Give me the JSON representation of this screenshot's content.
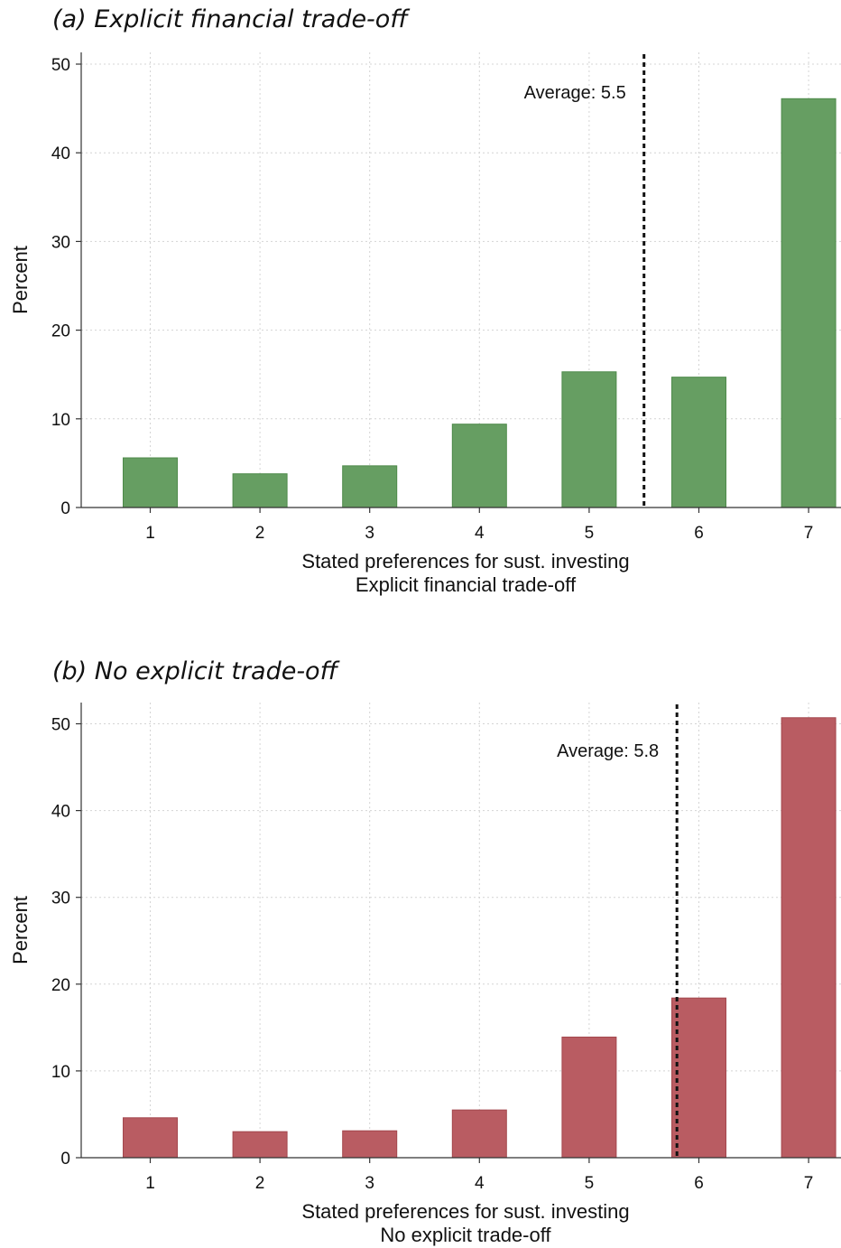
{
  "chart_data": [
    {
      "type": "bar",
      "title": "(a) Explicit financial trade-off",
      "categories": [
        "1",
        "2",
        "3",
        "4",
        "5",
        "6",
        "7"
      ],
      "values": [
        5.6,
        3.8,
        4.7,
        9.4,
        15.3,
        14.7,
        46.1
      ],
      "bar_color": "#669e62",
      "bar_edge": "#4e8a4a",
      "xlabel": "Stated preferences for sust. investing",
      "xlabel2": "Explicit financial trade-off",
      "ylabel": "Percent",
      "ylim": [
        0,
        52
      ],
      "yticks": [
        0,
        10,
        20,
        30,
        40,
        50
      ],
      "grid": true,
      "average": {
        "value": 5.5,
        "label": "Average: 5.5"
      }
    },
    {
      "type": "bar",
      "title": "(b) No explicit trade-off",
      "categories": [
        "1",
        "2",
        "3",
        "4",
        "5",
        "6",
        "7"
      ],
      "values": [
        4.6,
        3.0,
        3.1,
        5.5,
        13.9,
        18.4,
        50.7
      ],
      "bar_color": "#b95c62",
      "bar_edge": "#a3474d",
      "xlabel": "Stated preferences for sust. investing",
      "xlabel2": "No explicit trade-off",
      "ylabel": "Percent",
      "ylim": [
        0,
        52
      ],
      "yticks": [
        0,
        10,
        20,
        30,
        40,
        50
      ],
      "grid": true,
      "average": {
        "value": 5.8,
        "label": "Average: 5.8"
      }
    }
  ]
}
